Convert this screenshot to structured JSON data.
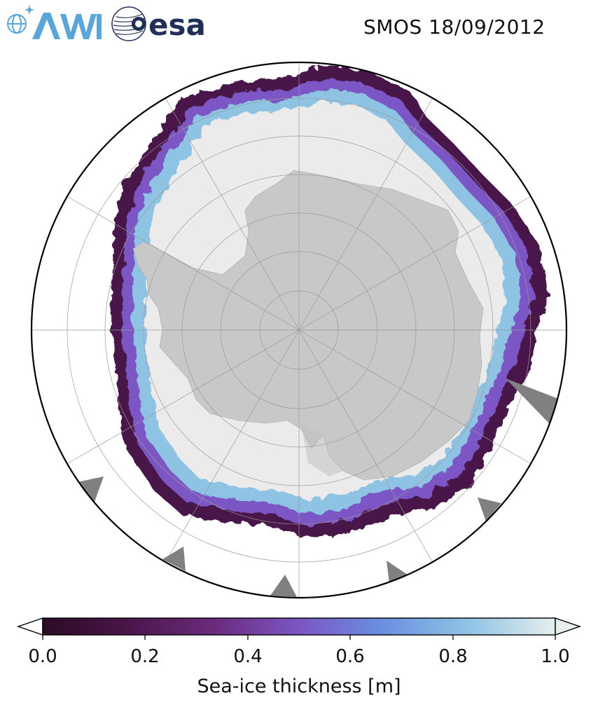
{
  "header": {
    "logo_awi_text": "AWI",
    "logo_esa_text": "esa",
    "title": "SMOS 18/09/2012"
  },
  "map": {
    "projection": "South polar stereographic",
    "land_color": "#c8c8c8",
    "thick_ice_color": "#ebebeb",
    "ocean_color": "#ffffff",
    "boundary_color": "#000000",
    "gridline_color": "#9a9a9a",
    "missing_data_color": "#808080"
  },
  "colorbar": {
    "label": "Sea-ice thickness [m]",
    "ticks": [
      "0.0",
      "0.2",
      "0.4",
      "0.6",
      "0.8",
      "1.0"
    ],
    "range": [
      0.0,
      1.0
    ],
    "colormap": [
      "#2b0b23",
      "#4a1548",
      "#6a2a7a",
      "#7b56c4",
      "#6a8fe0",
      "#8fc3e4",
      "#e6eeee"
    ],
    "extend": "both"
  }
}
